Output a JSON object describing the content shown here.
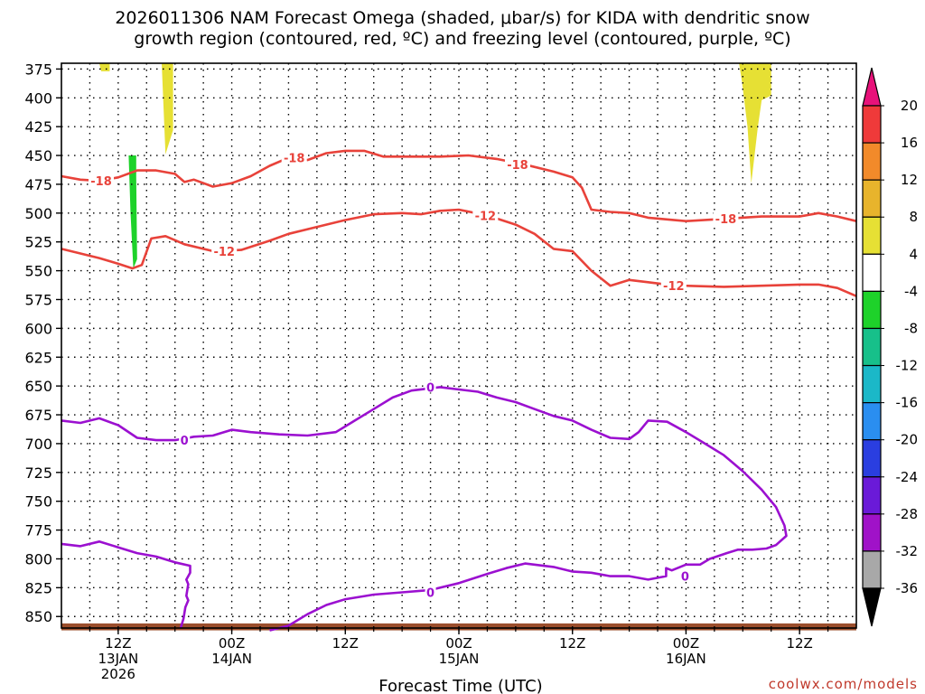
{
  "chart_data": {
    "type": "contour-timeheight",
    "title_lines": [
      "2026011306 NAM Forecast Omega (shaded, μbar/s) for KIDA with dendritic snow",
      "growth region (contoured, red, ºC) and freezing level (contoured, purple, ºC)"
    ],
    "xlabel": "Forecast Time (UTC)",
    "credit": "coolwx.com/models",
    "y_axis": {
      "type": "pressure_hPa",
      "ylim": [
        860,
        370
      ],
      "ticks": [
        375,
        400,
        425,
        450,
        475,
        500,
        525,
        550,
        575,
        600,
        625,
        650,
        675,
        700,
        725,
        750,
        775,
        800,
        825,
        850
      ]
    },
    "x_axis": {
      "units": "hours since 2026-01-13 06Z",
      "xlim": [
        0,
        84
      ],
      "ticks": [
        {
          "hour": 6,
          "lines": [
            "12Z",
            "13JAN",
            "2026"
          ]
        },
        {
          "hour": 18,
          "lines": [
            "00Z",
            "14JAN"
          ]
        },
        {
          "hour": 30,
          "lines": [
            "12Z"
          ]
        },
        {
          "hour": 42,
          "lines": [
            "00Z",
            "15JAN"
          ]
        },
        {
          "hour": 54,
          "lines": [
            "12Z"
          ]
        },
        {
          "hour": 66,
          "lines": [
            "00Z",
            "16JAN"
          ]
        },
        {
          "hour": 78,
          "lines": [
            "12Z"
          ]
        }
      ]
    },
    "colorbar": {
      "labels": [
        "20",
        "16",
        "12",
        "8",
        "4",
        "-4",
        "-8",
        "-12",
        "-16",
        "-20",
        "-24",
        "-28",
        "-32",
        "-36"
      ],
      "bands": [
        {
          "from": 16,
          "to": 20,
          "color": "#ef3a3a"
        },
        {
          "from": 12,
          "to": 16,
          "color": "#f28a2a"
        },
        {
          "from": 8,
          "to": 12,
          "color": "#e8b42c"
        },
        {
          "from": 4,
          "to": 8,
          "color": "#e6e034"
        },
        {
          "from": -4,
          "to": 4,
          "color": "#ffffff"
        },
        {
          "from": -8,
          "to": -4,
          "color": "#1ed22a"
        },
        {
          "from": -12,
          "to": -8,
          "color": "#17c08a"
        },
        {
          "from": -16,
          "to": -12,
          "color": "#1bb8c8"
        },
        {
          "from": -20,
          "to": -16,
          "color": "#2a8ef0"
        },
        {
          "from": -24,
          "to": -20,
          "color": "#2a3ee0"
        },
        {
          "from": -28,
          "to": -24,
          "color": "#6a1ad8"
        },
        {
          "from": -32,
          "to": -28,
          "color": "#a012c8"
        },
        {
          "from": -36,
          "to": -32,
          "color": "#a8a8a8"
        }
      ],
      "over_color": "#e8127a",
      "under_color": "#000000"
    },
    "omega_shaded": [
      {
        "color": "#e6e034",
        "points": [
          [
            4.0,
            370
          ],
          [
            5.1,
            370
          ],
          [
            5.1,
            377
          ],
          [
            4.2,
            377
          ]
        ]
      },
      {
        "color": "#e6e034",
        "points": [
          [
            10.6,
            370
          ],
          [
            11.8,
            370
          ],
          [
            11.8,
            428
          ],
          [
            11.0,
            449
          ]
        ]
      },
      {
        "color": "#1ed22a",
        "points": [
          [
            7.1,
            450
          ],
          [
            7.9,
            450
          ],
          [
            7.9,
            468
          ],
          [
            8.0,
            540
          ],
          [
            7.6,
            548
          ],
          [
            7.3,
            500
          ]
        ]
      },
      {
        "color": "#e6e034",
        "points": [
          [
            71.6,
            370
          ],
          [
            75.0,
            370
          ],
          [
            75.0,
            398
          ],
          [
            74.0,
            402
          ],
          [
            73.6,
            425
          ],
          [
            72.9,
            474
          ],
          [
            72.5,
            425
          ],
          [
            71.9,
            385
          ]
        ]
      }
    ],
    "contours": [
      {
        "label": "-18",
        "color": "#e8423a",
        "points": [
          [
            0,
            468
          ],
          [
            2,
            471
          ],
          [
            4,
            472
          ],
          [
            6,
            469
          ],
          [
            8,
            463
          ],
          [
            10,
            463
          ],
          [
            12,
            466
          ],
          [
            13,
            473
          ],
          [
            14,
            471
          ],
          [
            16,
            477
          ],
          [
            18,
            474
          ],
          [
            20,
            468
          ],
          [
            22,
            459
          ],
          [
            24,
            452
          ],
          [
            26,
            454
          ],
          [
            28,
            448
          ],
          [
            30,
            446
          ],
          [
            32,
            446
          ],
          [
            34,
            451
          ],
          [
            37,
            451
          ],
          [
            40,
            451
          ],
          [
            43,
            450
          ],
          [
            46,
            453
          ],
          [
            49,
            458
          ],
          [
            52,
            464
          ],
          [
            54,
            469
          ],
          [
            55,
            478
          ],
          [
            56,
            497
          ],
          [
            58,
            499
          ],
          [
            60,
            500
          ],
          [
            62,
            504
          ],
          [
            66,
            507
          ],
          [
            70,
            505
          ],
          [
            74,
            503
          ],
          [
            78,
            503
          ],
          [
            80,
            500
          ],
          [
            82,
            503
          ],
          [
            84,
            507
          ]
        ],
        "label_positions": [
          [
            4.2,
            472
          ],
          [
            24.6,
            452
          ],
          [
            48.2,
            458
          ],
          [
            70.2,
            505
          ]
        ]
      },
      {
        "label": "-12",
        "color": "#e8423a",
        "points": [
          [
            0,
            531
          ],
          [
            2,
            535
          ],
          [
            4,
            539
          ],
          [
            6,
            544
          ],
          [
            7.5,
            548
          ],
          [
            8.5,
            545
          ],
          [
            9.5,
            522
          ],
          [
            11,
            520
          ],
          [
            13,
            527
          ],
          [
            16,
            533
          ],
          [
            19,
            532
          ],
          [
            22,
            524
          ],
          [
            24,
            518
          ],
          [
            27,
            512
          ],
          [
            30,
            506
          ],
          [
            33,
            501
          ],
          [
            36,
            500
          ],
          [
            38,
            501
          ],
          [
            40,
            498
          ],
          [
            42,
            497
          ],
          [
            45,
            502
          ],
          [
            48,
            510
          ],
          [
            50,
            518
          ],
          [
            52,
            531
          ],
          [
            54,
            533
          ],
          [
            56,
            550
          ],
          [
            58,
            563
          ],
          [
            60,
            558
          ],
          [
            62,
            560
          ],
          [
            64,
            562
          ],
          [
            66,
            563
          ],
          [
            70,
            564
          ],
          [
            74,
            563
          ],
          [
            78,
            562
          ],
          [
            80,
            562
          ],
          [
            82,
            565
          ],
          [
            84,
            572
          ]
        ],
        "label_positions": [
          [
            17.2,
            533
          ],
          [
            44.8,
            502
          ],
          [
            64.7,
            563
          ]
        ]
      },
      {
        "label": "0",
        "color": "#9b10d0",
        "points": [
          [
            0,
            680
          ],
          [
            2,
            682
          ],
          [
            4,
            678
          ],
          [
            6,
            684
          ],
          [
            8,
            695
          ],
          [
            10,
            697
          ],
          [
            12,
            697
          ],
          [
            14,
            694
          ],
          [
            16,
            693
          ],
          [
            18,
            688
          ],
          [
            20,
            690
          ],
          [
            23,
            692
          ],
          [
            26,
            693
          ],
          [
            29,
            690
          ],
          [
            31,
            680
          ],
          [
            33,
            670
          ],
          [
            35,
            660
          ],
          [
            37,
            654
          ],
          [
            40,
            651
          ],
          [
            42,
            653
          ],
          [
            44,
            655
          ],
          [
            46,
            660
          ],
          [
            48,
            664
          ],
          [
            50,
            670
          ],
          [
            52,
            676
          ],
          [
            54,
            680
          ],
          [
            56,
            688
          ],
          [
            58,
            695
          ],
          [
            60,
            696
          ],
          [
            61,
            690
          ],
          [
            62,
            680
          ],
          [
            64,
            681
          ],
          [
            66,
            690
          ],
          [
            68,
            700
          ],
          [
            70,
            710
          ],
          [
            72,
            724
          ],
          [
            74,
            740
          ],
          [
            75.5,
            755
          ],
          [
            76.4,
            771
          ],
          [
            76.6,
            780
          ],
          [
            75.5,
            788
          ],
          [
            74.5,
            791
          ],
          [
            73,
            792
          ],
          [
            71.5,
            792
          ],
          [
            70.3,
            795
          ],
          [
            68.5,
            800
          ],
          [
            67.5,
            805
          ],
          [
            66,
            805
          ],
          [
            64.5,
            810
          ],
          [
            63.9,
            808
          ],
          [
            63.9,
            815
          ],
          [
            62,
            818
          ],
          [
            60,
            815
          ],
          [
            58,
            815
          ],
          [
            56,
            812
          ],
          [
            54,
            811
          ],
          [
            52,
            807
          ],
          [
            49,
            804
          ],
          [
            47,
            808
          ],
          [
            45,
            813
          ],
          [
            42,
            821
          ],
          [
            39,
            827
          ],
          [
            36,
            829
          ],
          [
            33,
            831
          ],
          [
            30,
            835
          ],
          [
            28,
            840
          ],
          [
            26,
            848
          ],
          [
            24,
            858
          ],
          [
            22,
            862
          ]
        ],
        "label_positions": [
          [
            13.0,
            697
          ],
          [
            39.0,
            651
          ],
          [
            65.9,
            815
          ],
          [
            39.0,
            829
          ]
        ]
      },
      {
        "label": "0",
        "color": "#9b10d0",
        "points": [
          [
            0,
            787
          ],
          [
            2,
            789
          ],
          [
            4,
            785
          ],
          [
            6,
            790
          ],
          [
            8,
            795
          ],
          [
            10,
            798
          ],
          [
            12,
            803
          ],
          [
            13.6,
            806
          ],
          [
            13.6,
            812
          ],
          [
            13.2,
            818
          ],
          [
            13.4,
            822
          ],
          [
            13.2,
            832
          ],
          [
            13.4,
            836
          ],
          [
            13.1,
            842
          ],
          [
            12.9,
            852
          ],
          [
            12.6,
            860
          ]
        ],
        "label_positions": []
      }
    ],
    "ground_band": {
      "color": "#9b4e2c",
      "from_hpa": 856,
      "to_hpa": 862
    }
  }
}
